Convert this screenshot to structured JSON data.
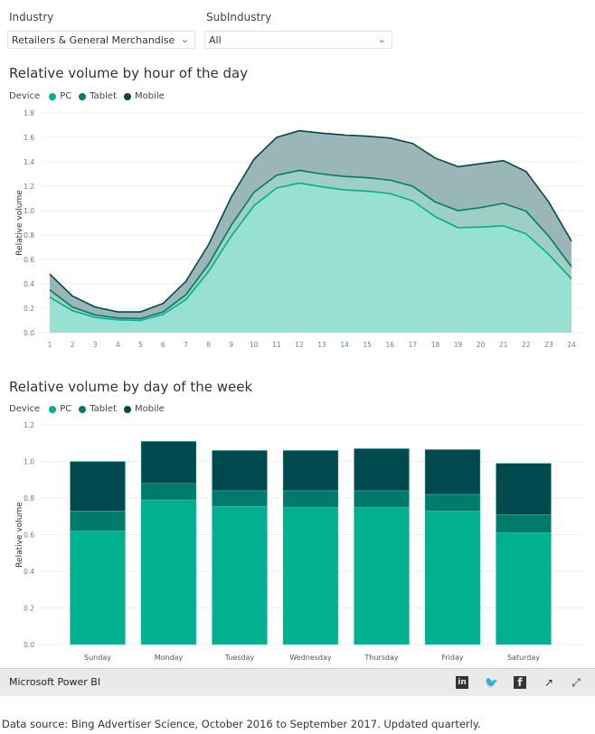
{
  "filters": {
    "industry": {
      "label": "Industry",
      "value": "Retailers & General Merchandise"
    },
    "subindustry": {
      "label": "SubIndustry",
      "value": "All"
    }
  },
  "colors": {
    "PC": "#01b08f",
    "Tablet": "#007a6a",
    "Mobile": "#004a4f",
    "PCFill": "#98e0d2",
    "TabletFill": "#9dcfc5",
    "MobileFill": "#9ab6b6"
  },
  "legend": {
    "title": "Device",
    "items": [
      "PC",
      "Tablet",
      "Mobile"
    ]
  },
  "chart_data": [
    {
      "type": "area",
      "stacked": true,
      "title": "Relative volume by hour of the day",
      "xlabel": "",
      "ylabel": "Relative volume",
      "ylim": [
        0,
        1.8
      ],
      "yticks": [
        "0.0",
        "0.2",
        "0.4",
        "0.6",
        "0.8",
        "1.0",
        "1.2",
        "1.4",
        "1.6",
        "1.8"
      ],
      "x": [
        "1",
        "2",
        "3",
        "4",
        "5",
        "6",
        "7",
        "8",
        "9",
        "10",
        "11",
        "12",
        "13",
        "14",
        "15",
        "16",
        "17",
        "18",
        "19",
        "20",
        "21",
        "22",
        "23",
        "24"
      ],
      "grid": true,
      "legend_position": "top-left",
      "series": [
        {
          "name": "PC",
          "values": [
            0.29,
            0.18,
            0.125,
            0.105,
            0.1,
            0.15,
            0.27,
            0.5,
            0.79,
            1.04,
            1.185,
            1.225,
            1.195,
            1.17,
            1.16,
            1.14,
            1.08,
            0.95,
            0.86,
            0.865,
            0.875,
            0.81,
            0.64,
            0.44
          ]
        },
        {
          "name": "Tablet",
          "values": [
            0.06,
            0.03,
            0.02,
            0.015,
            0.015,
            0.02,
            0.04,
            0.06,
            0.09,
            0.11,
            0.105,
            0.105,
            0.105,
            0.11,
            0.11,
            0.11,
            0.12,
            0.12,
            0.14,
            0.16,
            0.185,
            0.185,
            0.15,
            0.1
          ]
        },
        {
          "name": "Mobile",
          "values": [
            0.13,
            0.09,
            0.065,
            0.05,
            0.055,
            0.07,
            0.11,
            0.16,
            0.23,
            0.27,
            0.31,
            0.325,
            0.335,
            0.34,
            0.34,
            0.345,
            0.35,
            0.36,
            0.36,
            0.36,
            0.35,
            0.325,
            0.28,
            0.21
          ]
        }
      ]
    },
    {
      "type": "bar",
      "stacked": true,
      "title": "Relative volume by day of the week",
      "xlabel": "",
      "ylabel": "Relative volume",
      "ylim": [
        0,
        1.2
      ],
      "yticks": [
        "0.0",
        "0.2",
        "0.4",
        "0.6",
        "0.8",
        "1.0",
        "1.2"
      ],
      "categories": [
        "Sunday",
        "Monday",
        "Tuesday",
        "Wednesday",
        "Thursday",
        "Friday",
        "Saturday"
      ],
      "grid": true,
      "legend_position": "top-left",
      "series": [
        {
          "name": "PC",
          "values": [
            0.62,
            0.79,
            0.755,
            0.75,
            0.75,
            0.73,
            0.61
          ]
        },
        {
          "name": "Tablet",
          "values": [
            0.11,
            0.09,
            0.085,
            0.09,
            0.09,
            0.09,
            0.1
          ]
        },
        {
          "name": "Mobile",
          "values": [
            0.27,
            0.23,
            0.22,
            0.22,
            0.23,
            0.245,
            0.28
          ]
        }
      ]
    }
  ],
  "footer": {
    "brand": "Microsoft Power BI",
    "icons": [
      "linkedin-icon",
      "twitter-icon",
      "facebook-icon",
      "share-icon",
      "expand-icon"
    ]
  },
  "source_note": "Data source: Bing Advertiser Science, October 2016 to September 2017. Updated quarterly."
}
